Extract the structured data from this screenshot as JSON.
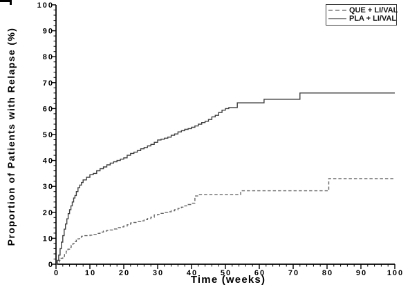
{
  "chart_data": {
    "type": "line",
    "subtype": "step",
    "title": "",
    "xlabel": "Time (weeks)",
    "ylabel": "Proportion of Patients with Relapse (%)",
    "xlim": [
      0,
      100
    ],
    "ylim": [
      0,
      100
    ],
    "x_major_ticks": [
      0,
      10,
      20,
      30,
      40,
      50,
      60,
      70,
      80,
      90,
      100
    ],
    "y_major_ticks": [
      0,
      10,
      20,
      30,
      40,
      50,
      60,
      70,
      80,
      90,
      100
    ],
    "x_minor_step": 2,
    "y_minor_step": 2,
    "grid": false,
    "legend_position": "top-right",
    "axis_color": "#000000",
    "series": [
      {
        "name": "QUE + LI/VAL",
        "slug": "que-li-val",
        "line_style": "dashed",
        "color": "#666666",
        "points": [
          [
            0,
            0
          ],
          [
            0.5,
            0.7
          ],
          [
            1,
            1.5
          ],
          [
            1.5,
            2.3
          ],
          [
            2,
            3
          ],
          [
            2.5,
            4
          ],
          [
            3,
            5
          ],
          [
            3.5,
            5.8
          ],
          [
            4,
            6.5
          ],
          [
            4.5,
            7.3
          ],
          [
            5,
            8
          ],
          [
            5.5,
            8.7
          ],
          [
            6,
            9.3
          ],
          [
            6.5,
            9.8
          ],
          [
            7,
            10.4
          ],
          [
            7.5,
            10.8
          ],
          [
            8,
            11
          ],
          [
            10,
            11.2
          ],
          [
            11,
            11.5
          ],
          [
            12,
            11.9
          ],
          [
            13,
            12.4
          ],
          [
            14,
            12.8
          ],
          [
            15,
            13
          ],
          [
            16,
            13.2
          ],
          [
            17,
            13.6
          ],
          [
            18,
            14.1
          ],
          [
            19,
            14.4
          ],
          [
            20,
            14.7
          ],
          [
            21,
            15.2
          ],
          [
            22,
            15.9
          ],
          [
            23,
            16.1
          ],
          [
            24,
            16.4
          ],
          [
            25,
            16.7
          ],
          [
            26,
            17.2
          ],
          [
            27,
            17.6
          ],
          [
            28,
            18.1
          ],
          [
            29,
            19
          ],
          [
            30,
            19.2
          ],
          [
            31,
            19.6
          ],
          [
            32,
            20
          ],
          [
            33,
            20.2
          ],
          [
            34,
            20.6
          ],
          [
            35,
            21
          ],
          [
            36,
            21.5
          ],
          [
            37,
            22
          ],
          [
            38,
            22.5
          ],
          [
            39,
            23
          ],
          [
            40,
            23.5
          ],
          [
            41,
            26.3
          ],
          [
            42,
            26.8
          ],
          [
            54.5,
            28.3
          ],
          [
            80.5,
            33
          ],
          [
            100,
            33
          ]
        ]
      },
      {
        "name": "PLA + LI/VAL",
        "slug": "pla-li-val",
        "line_style": "solid",
        "color": "#3f3f3f",
        "points": [
          [
            0,
            0
          ],
          [
            0.4,
            1.5
          ],
          [
            0.8,
            3.5
          ],
          [
            1.2,
            6
          ],
          [
            1.6,
            8.5
          ],
          [
            2,
            11
          ],
          [
            2.4,
            13.5
          ],
          [
            2.8,
            15.5
          ],
          [
            3.2,
            17.5
          ],
          [
            3.6,
            19.5
          ],
          [
            4,
            21
          ],
          [
            4.4,
            22.5
          ],
          [
            4.8,
            24
          ],
          [
            5.2,
            25.5
          ],
          [
            5.6,
            26.5
          ],
          [
            6,
            28
          ],
          [
            6.5,
            29.5
          ],
          [
            7,
            30.5
          ],
          [
            7.5,
            31.5
          ],
          [
            8,
            32.5
          ],
          [
            9,
            33.5
          ],
          [
            10,
            34.5
          ],
          [
            11,
            35
          ],
          [
            12,
            36
          ],
          [
            13,
            36.8
          ],
          [
            14,
            37.5
          ],
          [
            15,
            38.3
          ],
          [
            16,
            39
          ],
          [
            17,
            39.5
          ],
          [
            18,
            40
          ],
          [
            19,
            40.5
          ],
          [
            20,
            41
          ],
          [
            21,
            42
          ],
          [
            22,
            42.7
          ],
          [
            23,
            43.2
          ],
          [
            24,
            43.8
          ],
          [
            25,
            44.5
          ],
          [
            26,
            45
          ],
          [
            27,
            45.6
          ],
          [
            28,
            46.2
          ],
          [
            29,
            47
          ],
          [
            30,
            47.9
          ],
          [
            31,
            48.2
          ],
          [
            32,
            48.6
          ],
          [
            33,
            49
          ],
          [
            34,
            49.7
          ],
          [
            35,
            50.2
          ],
          [
            36,
            51
          ],
          [
            37,
            51.5
          ],
          [
            38,
            52
          ],
          [
            39,
            52.3
          ],
          [
            40,
            52.8
          ],
          [
            41,
            53.3
          ],
          [
            42,
            54
          ],
          [
            43,
            54.6
          ],
          [
            44,
            55.1
          ],
          [
            45,
            55.8
          ],
          [
            46,
            56.8
          ],
          [
            47,
            57.4
          ],
          [
            48,
            58.5
          ],
          [
            49,
            59.4
          ],
          [
            50,
            60
          ],
          [
            51,
            60.4
          ],
          [
            53.5,
            62.2
          ],
          [
            61.4,
            63.6
          ],
          [
            72,
            66
          ],
          [
            100,
            66
          ]
        ]
      }
    ]
  },
  "legend": {
    "entries": [
      {
        "label": "QUE + LI/VAL",
        "style": "dashed"
      },
      {
        "label": "PLA + LI/VAL",
        "style": "solid"
      }
    ]
  }
}
